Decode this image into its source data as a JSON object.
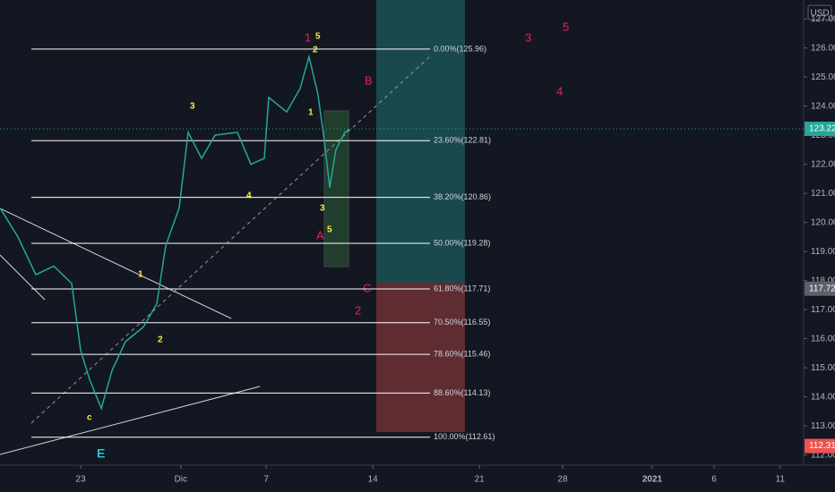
{
  "chart_data": {
    "type": "line",
    "currency": "USD",
    "x": [
      -3.78,
      -2.94,
      -2.1,
      -1.26,
      -0.42,
      0,
      0.42,
      0.97,
      1.47,
      2.1,
      2.94,
      3.57,
      3.99,
      4.62,
      5.04,
      5.67,
      6.3,
      7.35,
      7.98,
      8.61,
      8.82,
      9.66,
      10.29,
      10.71,
      11.13,
      11.43,
      11.68,
      11.97,
      12.39,
      12.61
    ],
    "values": [
      120.5,
      119.5,
      118.2,
      118.5,
      117.9,
      115.6,
      114.6,
      113.6,
      114.9,
      115.9,
      116.4,
      117.2,
      119.2,
      120.5,
      123.1,
      122.2,
      123.0,
      123.1,
      122.0,
      122.2,
      124.3,
      123.8,
      124.6,
      125.7,
      124.4,
      122.8,
      121.2,
      122.5,
      123.1,
      123.2
    ],
    "color": "#26a69a",
    "xlim": [
      -3.78,
      33.9
    ],
    "ylim": [
      111.65,
      127.65
    ],
    "xticks": [
      {
        "value": 0,
        "label": "23"
      },
      {
        "value": 4.7,
        "label": "Dic"
      },
      {
        "value": 8.7,
        "label": "7"
      },
      {
        "value": 13.7,
        "label": "14"
      },
      {
        "value": 18.7,
        "label": "21"
      },
      {
        "value": 22.6,
        "label": "28"
      },
      {
        "value": 26.8,
        "label": "2021"
      },
      {
        "value": 29.7,
        "label": "6"
      },
      {
        "value": 32.8,
        "label": "11"
      }
    ],
    "yticks": [
      {
        "value": 112,
        "label": "112.00"
      },
      {
        "value": 113,
        "label": "113.00"
      },
      {
        "value": 114,
        "label": "114.00"
      },
      {
        "value": 115,
        "label": "115.00"
      },
      {
        "value": 116,
        "label": "116.00"
      },
      {
        "value": 117,
        "label": "117.00"
      },
      {
        "value": 118,
        "label": "118.00"
      },
      {
        "value": 119,
        "label": "119.00"
      },
      {
        "value": 120,
        "label": "120.00"
      },
      {
        "value": 121,
        "label": "121.00"
      },
      {
        "value": 122,
        "label": "122.00"
      },
      {
        "value": 123,
        "label": "123.00"
      },
      {
        "value": 124,
        "label": "124.00"
      },
      {
        "value": 125,
        "label": "125.00"
      },
      {
        "value": 126,
        "label": "126.00"
      },
      {
        "value": 127,
        "label": "127.00"
      }
    ],
    "fib_levels": [
      {
        "label": "0.00%(125.96)",
        "value": 125.96
      },
      {
        "label": "23.60%(122.81)",
        "value": 122.81
      },
      {
        "label": "38.20%(120.86)",
        "value": 120.86
      },
      {
        "label": "50.00%(119.28)",
        "value": 119.28
      },
      {
        "label": "61.80%(117.71)",
        "value": 117.71
      },
      {
        "label": "70.50%(116.55)",
        "value": 116.55
      },
      {
        "label": "78.60%(115.46)",
        "value": 115.46
      },
      {
        "label": "88.60%(114.13)",
        "value": 114.13
      },
      {
        "label": "100.00%(112.61)",
        "value": 112.61
      }
    ],
    "price_labels": [
      {
        "value": 123.22,
        "color": "#26a69a"
      },
      {
        "value": 117.72,
        "color": "#5d606b"
      },
      {
        "value": 112.31,
        "color": "#ef5350"
      }
    ],
    "annotations": [
      "1",
      "5",
      "2",
      "B",
      "3",
      "5",
      "4",
      "3",
      "1",
      "4",
      "3",
      "5",
      "A",
      "1",
      "C",
      "2",
      "2",
      "c",
      "E"
    ]
  }
}
